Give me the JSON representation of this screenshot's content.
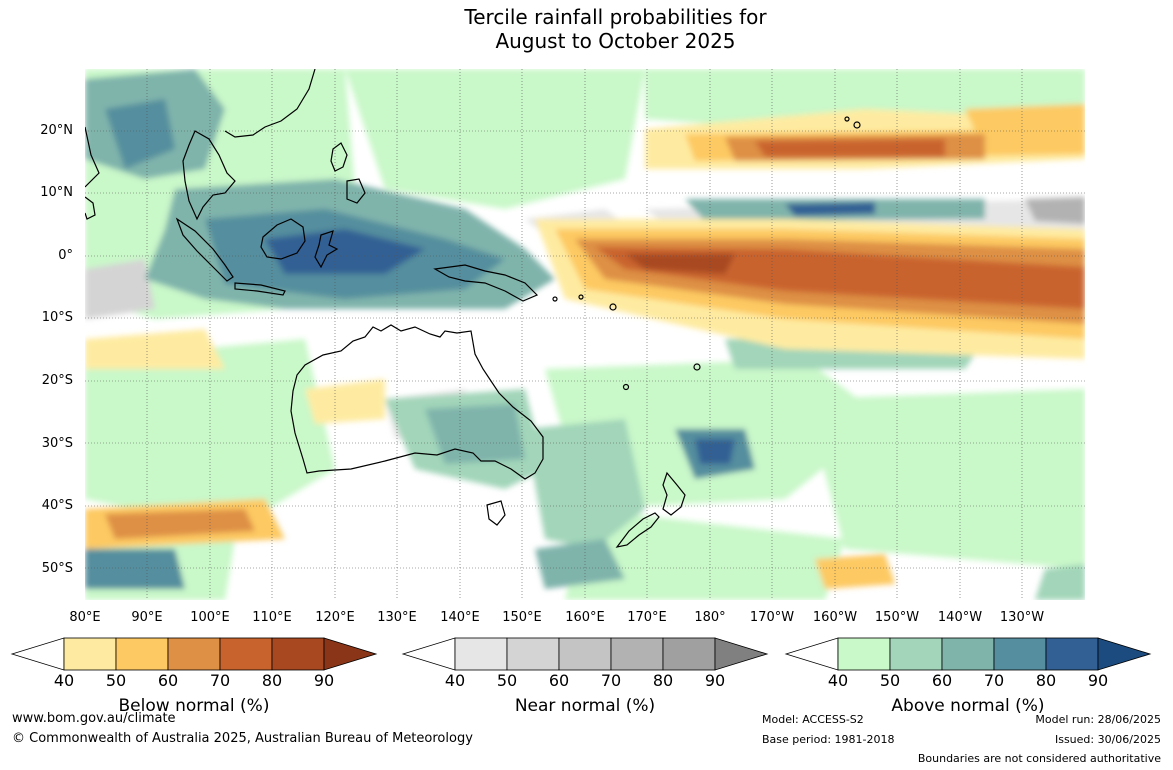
{
  "title": {
    "line1": "Tercile rainfall probabilities for",
    "line2": "August to October 2025"
  },
  "map": {
    "lat_labels": [
      "20°N",
      "10°N",
      "0°",
      "10°S",
      "20°S",
      "30°S",
      "40°S",
      "50°S"
    ],
    "lon_labels": [
      "80°E",
      "90°E",
      "100°E",
      "110°E",
      "120°E",
      "130°E",
      "140°E",
      "150°E",
      "160°E",
      "170°E",
      "180°",
      "170°W",
      "160°W",
      "150°W",
      "140°W",
      "130°W"
    ]
  },
  "legend": {
    "ticks": [
      "40",
      "50",
      "60",
      "70",
      "80",
      "90"
    ],
    "below": {
      "title": "Below normal (%)",
      "colors": [
        "#ffffff",
        "#feeba1",
        "#fdc962",
        "#de9044",
        "#c9632d",
        "#a84820",
        "#8a3418"
      ]
    },
    "near": {
      "title": "Near normal (%)",
      "colors": [
        "#ffffff",
        "#e6e6e6",
        "#d4d4d4",
        "#c4c4c4",
        "#b2b2b2",
        "#a0a0a0",
        "#808080"
      ]
    },
    "above": {
      "title": "Above normal (%)",
      "colors": [
        "#ffffff",
        "#c9f8c9",
        "#a2d5b9",
        "#7fb4ab",
        "#558e9e",
        "#336094",
        "#1b4b7f"
      ]
    }
  },
  "footer": {
    "website": "www.bom.gov.au/climate",
    "copyright": "© Commonwealth of Australia 2025, Australian Bureau of Meteorology",
    "model": "Model: ACCESS-S2",
    "base_period": "Base period: 1981-2018",
    "model_run": "Model run: 28/06/2025",
    "issued": "Issued: 30/06/2025",
    "disclaimer": "Boundaries are not considered authoritative"
  }
}
